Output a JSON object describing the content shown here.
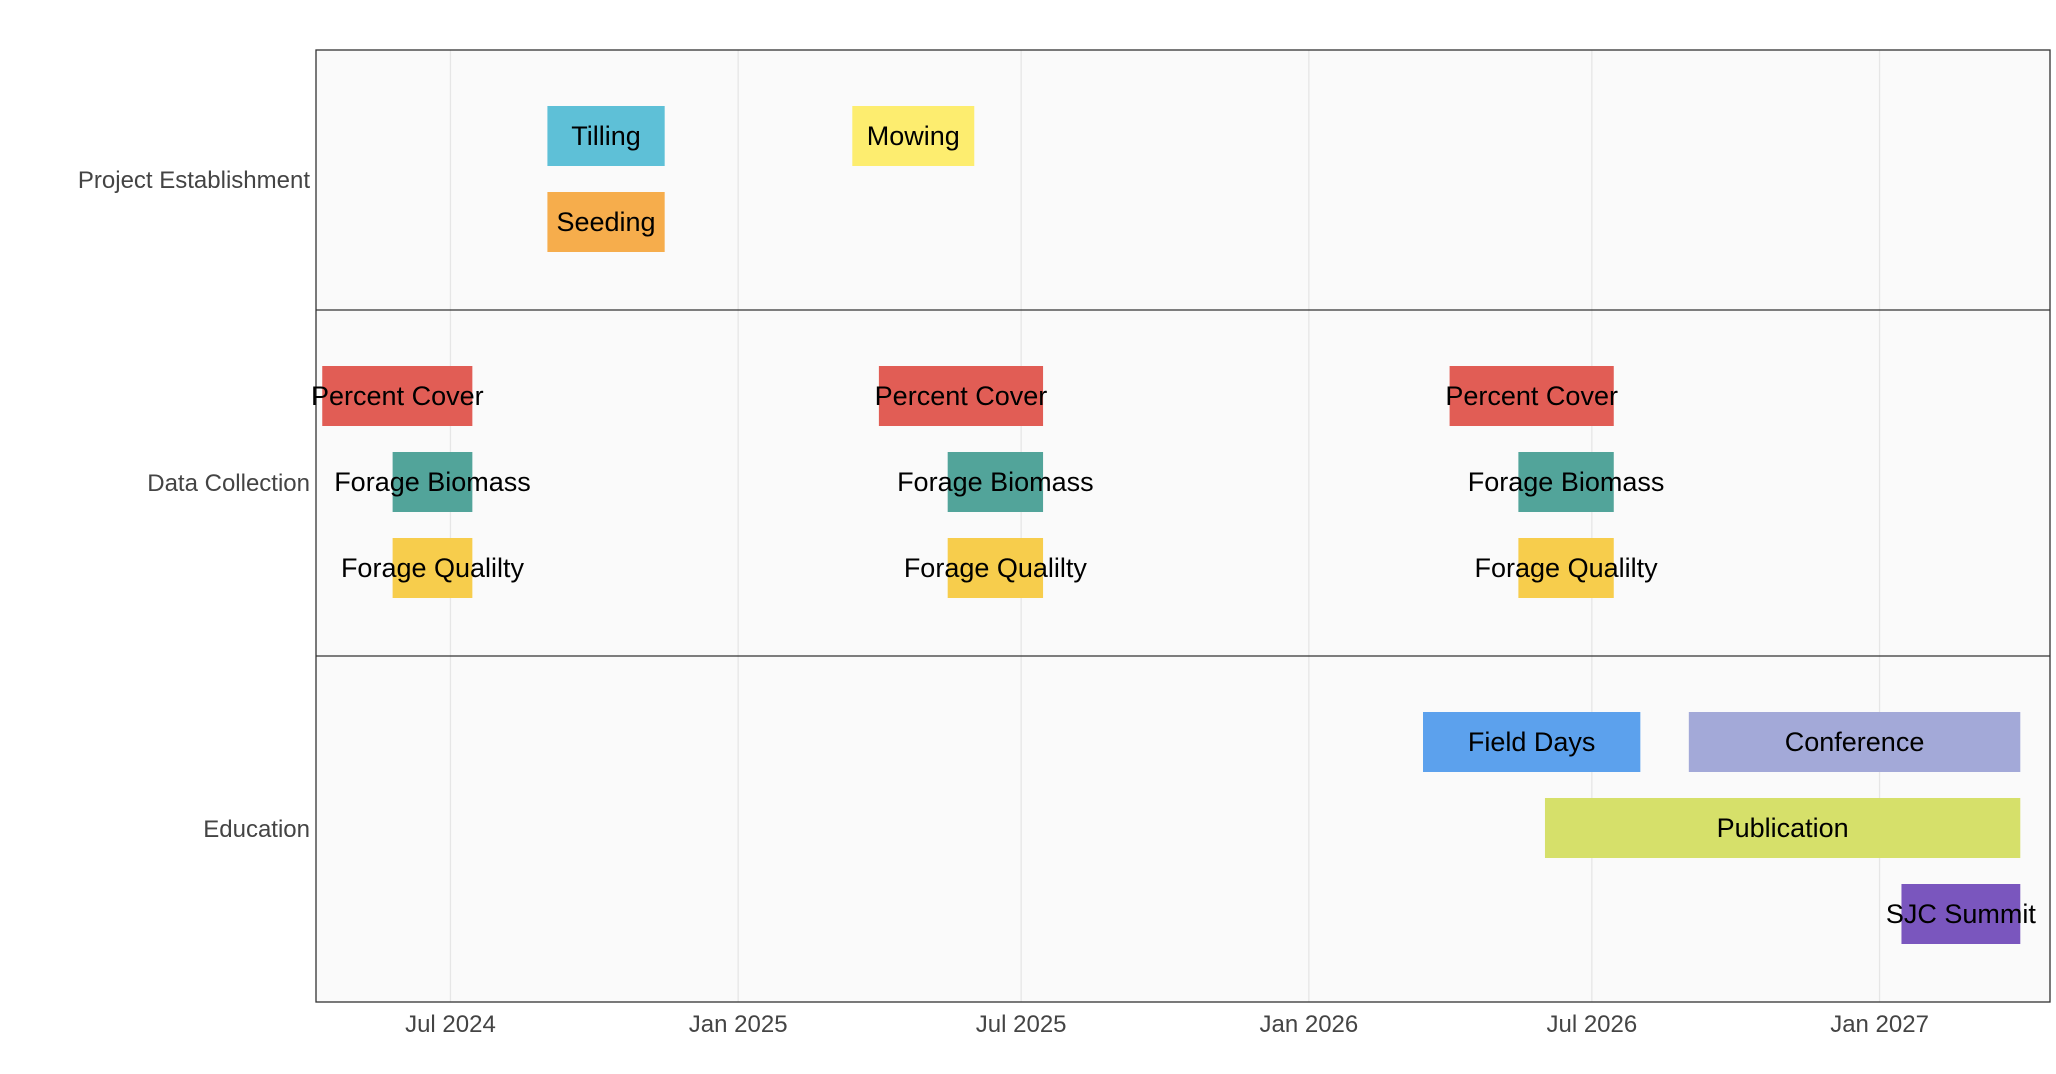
{
  "chart_data": {
    "type": "gantt",
    "title": "",
    "x_axis": {
      "type": "date",
      "range": [
        "2024-04-06",
        "2027-04-20"
      ],
      "ticks": [
        {
          "date": "2024-07-01",
          "label": "Jul 2024"
        },
        {
          "date": "2025-01-01",
          "label": "Jan 2025"
        },
        {
          "date": "2025-07-01",
          "label": "Jul 2025"
        },
        {
          "date": "2026-01-01",
          "label": "Jan 2026"
        },
        {
          "date": "2026-07-01",
          "label": "Jul 2026"
        },
        {
          "date": "2027-01-01",
          "label": "Jan 2027"
        }
      ]
    },
    "grid": true,
    "groups": [
      {
        "name": "Project Establishment",
        "rows": 2,
        "tasks": [
          {
            "label": "Tilling",
            "start": "2024-09-01",
            "end": "2024-11-15",
            "row": 0,
            "color": "#5ec0d7"
          },
          {
            "label": "Mowing",
            "start": "2025-03-15",
            "end": "2025-06-01",
            "row": 0,
            "color": "#fded6f"
          },
          {
            "label": "Seeding",
            "start": "2024-09-01",
            "end": "2024-11-15",
            "row": 1,
            "color": "#f6ad4c"
          }
        ]
      },
      {
        "name": "Data Collection",
        "rows": 3,
        "tasks": [
          {
            "label": "Percent Cover",
            "start": "2024-04-10",
            "end": "2024-07-15",
            "row": 0,
            "color": "#e15d55"
          },
          {
            "label": "Percent Cover",
            "start": "2025-04-01",
            "end": "2025-07-15",
            "row": 0,
            "color": "#e15d55"
          },
          {
            "label": "Percent Cover",
            "start": "2026-04-01",
            "end": "2026-07-15",
            "row": 0,
            "color": "#e15d55"
          },
          {
            "label": "Forage Biomass",
            "start": "2024-05-25",
            "end": "2024-07-15",
            "row": 1,
            "color": "#52a49a"
          },
          {
            "label": "Forage Biomass",
            "start": "2025-05-15",
            "end": "2025-07-15",
            "row": 1,
            "color": "#52a49a"
          },
          {
            "label": "Forage Biomass",
            "start": "2026-05-15",
            "end": "2026-07-15",
            "row": 1,
            "color": "#52a49a"
          },
          {
            "label": "Forage Qualilty",
            "start": "2024-05-25",
            "end": "2024-07-15",
            "row": 2,
            "color": "#f7cd4c"
          },
          {
            "label": "Forage Qualilty",
            "start": "2025-05-15",
            "end": "2025-07-15",
            "row": 2,
            "color": "#f7cd4c"
          },
          {
            "label": "Forage Qualilty",
            "start": "2026-05-15",
            "end": "2026-07-15",
            "row": 2,
            "color": "#f7cd4c"
          }
        ]
      },
      {
        "name": "Education",
        "rows": 3,
        "tasks": [
          {
            "label": "Field Days",
            "start": "2026-03-15",
            "end": "2026-08-01",
            "row": 0,
            "color": "#5ca1ed"
          },
          {
            "label": "Conference",
            "start": "2026-09-01",
            "end": "2027-04-01",
            "row": 0,
            "color": "#a3a9d8"
          },
          {
            "label": "Publication",
            "start": "2026-06-01",
            "end": "2027-04-01",
            "row": 1,
            "color": "#d6e06a"
          },
          {
            "label": "SJC Summit",
            "start": "2027-01-15",
            "end": "2027-04-01",
            "row": 2,
            "color": "#7a56be"
          }
        ]
      }
    ]
  }
}
